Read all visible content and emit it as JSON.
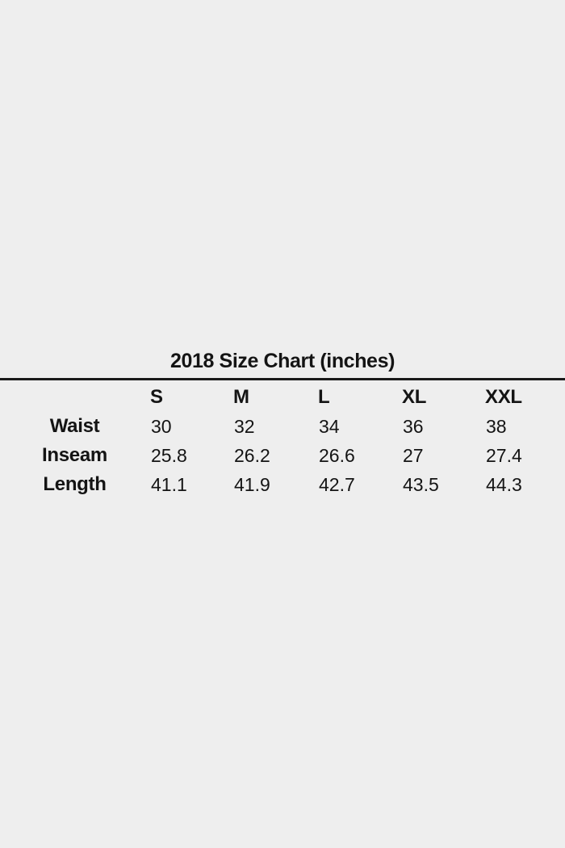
{
  "colors": {
    "background": "#eeeeee",
    "text": "#141414",
    "divider": "#1a1a1a"
  },
  "chart_data": {
    "type": "table",
    "title": "2018 Size Chart (inches)",
    "column_headers": [
      "S",
      "M",
      "L",
      "XL",
      "XXL"
    ],
    "row_labels": [
      "Waist",
      "Inseam",
      "Length"
    ],
    "rows": [
      [
        30,
        32,
        34,
        36,
        38
      ],
      [
        25.8,
        26.2,
        26.6,
        27,
        27.4
      ],
      [
        41.1,
        41.9,
        42.7,
        43.5,
        44.3
      ]
    ]
  }
}
